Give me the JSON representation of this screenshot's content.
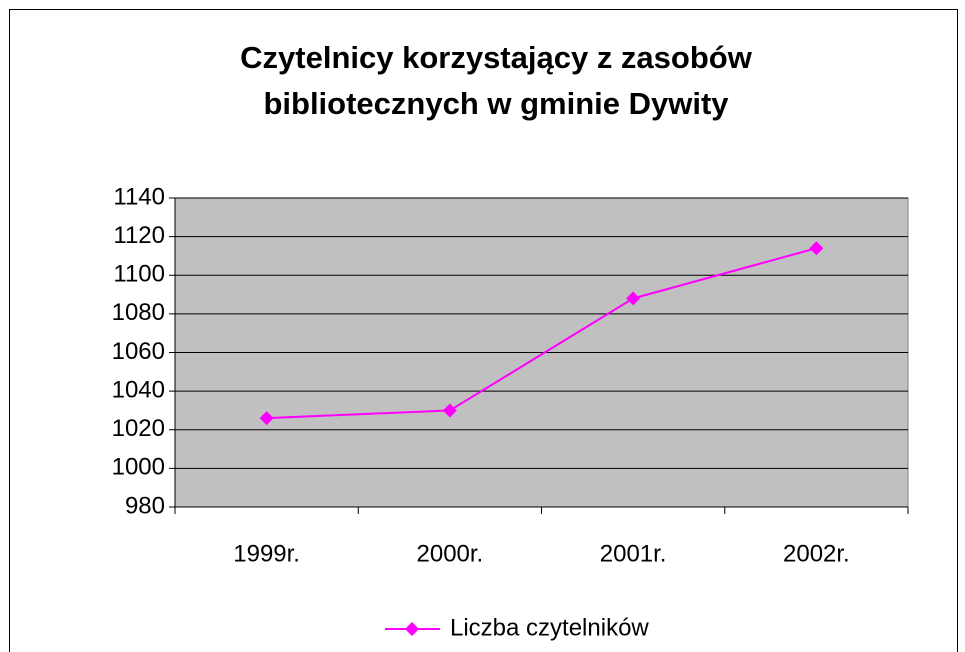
{
  "chart_data": {
    "type": "line",
    "title": [
      "Czytelnicy korzystający z zasobów",
      "bibliotecznych w gminie Dywity"
    ],
    "categories": [
      "1999r.",
      "2000r.",
      "2001r.",
      "2002r."
    ],
    "series": [
      {
        "name": "Liczba czytelników",
        "color": "#ff00ff",
        "values": [
          1026,
          1030,
          1088,
          1114
        ]
      }
    ],
    "ylim": [
      980,
      1140
    ],
    "yticks": [
      980,
      1000,
      1020,
      1040,
      1060,
      1080,
      1100,
      1120,
      1140
    ],
    "grid": true,
    "legend": "bottom"
  }
}
